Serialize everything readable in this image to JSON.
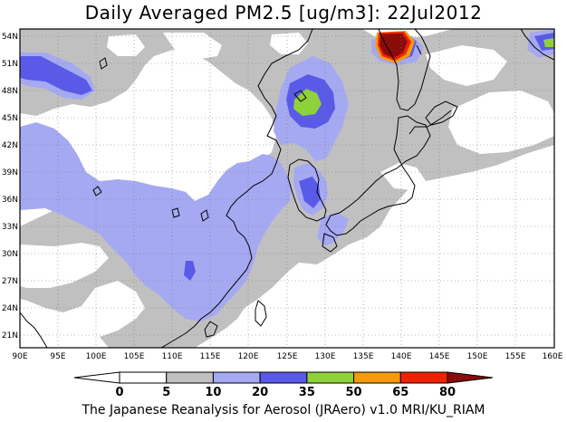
{
  "title": "Daily Averaged PM2.5 [ug/m3]: 22Jul2012",
  "footer": "The Japanese Reanalysis for Aerosol (JRAero) v1.0 MRI/KU_RIAM",
  "map": {
    "lon_range": [
      90,
      160
    ],
    "lat_range": [
      20,
      55
    ],
    "lon_ticks": [
      "90E",
      "95E",
      "100E",
      "105E",
      "110E",
      "115E",
      "120E",
      "125E",
      "130E",
      "135E",
      "140E",
      "145E",
      "150E",
      "155E",
      "160E"
    ],
    "lat_ticks": [
      "21N",
      "24N",
      "27N",
      "30N",
      "33N",
      "36N",
      "39N",
      "42N",
      "45N",
      "48N",
      "51N",
      "54N"
    ],
    "gridlines": "dotted"
  },
  "colorbar": {
    "labels": [
      "0",
      "5",
      "10",
      "20",
      "35",
      "50",
      "65",
      "80"
    ],
    "colors": [
      "#ffffff",
      "#ffffff",
      "#c0c0c0",
      "#a5a9f2",
      "#5a5ae8",
      "#8fd13a",
      "#f59a0a",
      "#ee2200",
      "#8b0a0a"
    ]
  },
  "palette": {
    "gray": "#c0c0c0",
    "light_blue": "#a5a9f2",
    "blue": "#5a5ae8",
    "green": "#8fd13a",
    "orange": "#f59a0a",
    "red": "#ee2200",
    "dark_red": "#8b0a0a"
  }
}
